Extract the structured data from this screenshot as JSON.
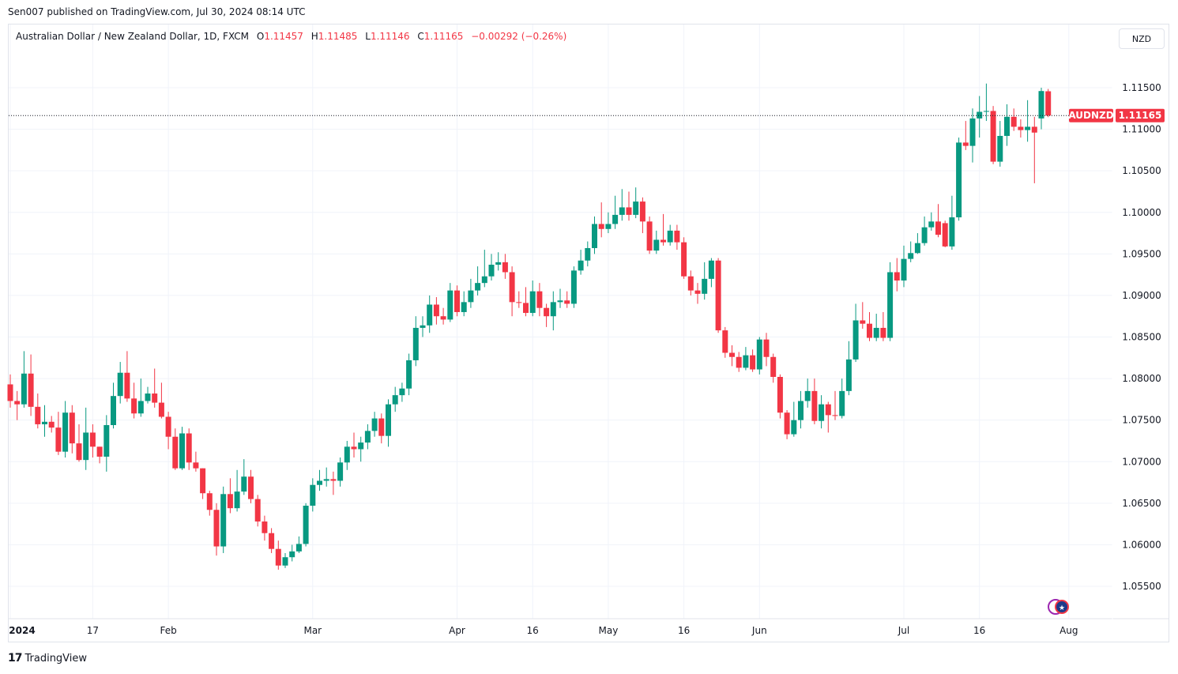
{
  "publish_line": "Sen007 published on TradingView.com, Jul 30, 2024 08:14 UTC",
  "legend": {
    "symbol": "Australian Dollar / New Zealand Dollar, 1D, FXCM",
    "o_label": "O",
    "o": "1.11457",
    "h_label": "H",
    "h": "1.11485",
    "l_label": "L",
    "l": "1.11146",
    "c_label": "C",
    "c": "1.11165",
    "change": "−0.00292 (−0.26%)"
  },
  "currency_button": "NZD",
  "last_price": {
    "ticker": "AUDNZD",
    "value": "1.11165",
    "price": 1.11165
  },
  "footer_logo": "TradingView",
  "colors": {
    "up": "#089981",
    "down": "#f23645",
    "grid": "#f0f3fa"
  },
  "chart_data": {
    "type": "candlestick",
    "title": "Australian Dollar / New Zealand Dollar, 1D, FXCM",
    "ylim": [
      1.0515,
      1.1185
    ],
    "y_ticks": [
      "1.05500",
      "1.06000",
      "1.06500",
      "1.07000",
      "1.07500",
      "1.08000",
      "1.08500",
      "1.09000",
      "1.09500",
      "1.10000",
      "1.10500",
      "1.11000",
      "1.11500"
    ],
    "x_ticks": [
      {
        "label": "2024",
        "index": 0
      },
      {
        "label": "17",
        "index": 12
      },
      {
        "label": "Feb",
        "index": 23
      },
      {
        "label": "Mar",
        "index": 44
      },
      {
        "label": "Apr",
        "index": 65
      },
      {
        "label": "16",
        "index": 76
      },
      {
        "label": "May",
        "index": 87
      },
      {
        "label": "16",
        "index": 98
      },
      {
        "label": "Jun",
        "index": 109
      },
      {
        "label": "Jul",
        "index": 130
      },
      {
        "label": "16",
        "index": 141
      },
      {
        "label": "Aug",
        "index": 154
      }
    ],
    "open_first": 1.0793,
    "open_overrides": {
      "136": 1.0987,
      "150": 1.1113,
      "151": 1.11457
    },
    "close": [
      1.0773,
      1.0769,
      1.0806,
      1.0766,
      1.0745,
      1.0748,
      1.0741,
      1.0712,
      1.0759,
      1.0722,
      1.0702,
      1.0735,
      1.0718,
      1.0706,
      1.0744,
      1.0779,
      1.0807,
      1.0776,
      1.0758,
      1.0773,
      1.0782,
      1.0771,
      1.0754,
      1.073,
      1.0692,
      1.0734,
      1.0699,
      1.0692,
      1.0662,
      1.0642,
      1.0598,
      1.0661,
      1.0644,
      1.0664,
      1.0682,
      1.0655,
      1.0628,
      1.0614,
      1.0595,
      1.0575,
      1.0585,
      1.0592,
      1.0601,
      1.0647,
      1.0672,
      1.0677,
      1.0679,
      1.0677,
      1.0699,
      1.0718,
      1.0715,
      1.0723,
      1.0737,
      1.0752,
      1.0731,
      1.0769,
      1.078,
      1.0788,
      1.0822,
      1.0861,
      1.0864,
      1.0889,
      1.0875,
      1.0871,
      1.0906,
      1.088,
      1.0892,
      1.0906,
      1.0915,
      1.0923,
      1.0937,
      1.094,
      1.0928,
      1.0892,
      1.0891,
      1.0879,
      1.0905,
      1.0885,
      1.0875,
      1.0892,
      1.0894,
      1.089,
      1.093,
      1.0942,
      1.0957,
      1.0986,
      1.098,
      1.0986,
      1.0997,
      1.1006,
      1.0997,
      1.1013,
      1.0989,
      1.0954,
      1.0967,
      1.0964,
      1.0978,
      1.0964,
      1.0923,
      1.0906,
      1.0902,
      1.092,
      1.0942,
      1.0858,
      1.0831,
      1.0826,
      1.0813,
      1.0828,
      1.0811,
      1.0847,
      1.0826,
      1.0802,
      1.0759,
      1.0733,
      1.075,
      1.0773,
      1.0785,
      1.0749,
      1.0769,
      1.0756,
      1.0755,
      1.0785,
      1.0823,
      1.087,
      1.0866,
      1.0849,
      1.0861,
      1.0849,
      1.0928,
      1.0918,
      1.0944,
      1.0951,
      1.0963,
      1.0982,
      1.0989,
      1.0973,
      1.0959,
      1.0994,
      1.1084,
      1.108,
      1.1113,
      1.1121,
      1.1122,
      1.1061,
      1.1092,
      1.1115,
      1.1103,
      1.1099,
      1.1103,
      1.1096,
      1.1146,
      1.11165
    ],
    "high": [
      1.0805,
      1.0785,
      1.0833,
      1.0829,
      1.0782,
      1.0768,
      1.0755,
      1.076,
      1.0773,
      1.0768,
      1.0745,
      1.0765,
      1.0745,
      1.0718,
      1.0756,
      1.0795,
      1.082,
      1.0833,
      1.0795,
      1.08,
      1.079,
      1.0812,
      1.0795,
      1.076,
      1.074,
      1.0742,
      1.074,
      1.0712,
      1.0692,
      1.0665,
      1.065,
      1.067,
      1.068,
      1.069,
      1.0703,
      1.069,
      1.066,
      1.0635,
      1.062,
      1.0605,
      1.059,
      1.06,
      1.061,
      1.065,
      1.068,
      1.069,
      1.0693,
      1.0688,
      1.0705,
      1.0725,
      1.0735,
      1.073,
      1.0745,
      1.076,
      1.0758,
      1.0775,
      1.079,
      1.0795,
      1.083,
      1.0875,
      1.0875,
      1.09,
      1.0898,
      1.0885,
      1.0915,
      1.0912,
      1.0905,
      1.092,
      1.0935,
      1.0955,
      1.095,
      1.0952,
      1.095,
      1.0935,
      1.0905,
      1.091,
      1.0918,
      1.0915,
      1.089,
      1.0905,
      1.0908,
      1.0905,
      1.0935,
      1.0955,
      1.0965,
      1.0995,
      1.1012,
      1.1,
      1.102,
      1.1028,
      1.1025,
      1.103,
      1.1018,
      1.0995,
      1.0978,
      1.0998,
      1.0985,
      1.0985,
      1.097,
      1.093,
      1.0915,
      1.094,
      1.0945,
      1.0945,
      1.0862,
      1.084,
      1.0832,
      1.0838,
      1.0835,
      1.085,
      1.0855,
      1.083,
      1.0805,
      1.0762,
      1.0772,
      1.0785,
      1.08,
      1.08,
      1.078,
      1.0772,
      1.0785,
      1.08,
      1.0845,
      1.089,
      1.0892,
      1.088,
      1.0878,
      1.088,
      1.094,
      1.0945,
      1.096,
      1.0965,
      1.0975,
      1.0995,
      1.1,
      1.101,
      1.099,
      1.102,
      1.109,
      1.111,
      1.1125,
      1.114,
      1.1155,
      1.1128,
      1.111,
      1.113,
      1.1125,
      1.1112,
      1.1135,
      1.1115,
      1.115,
      1.11485
    ],
    "low": [
      1.0765,
      1.075,
      1.0765,
      1.0755,
      1.074,
      1.073,
      1.0735,
      1.0708,
      1.0705,
      1.071,
      1.07,
      1.069,
      1.0705,
      1.0698,
      1.0688,
      1.074,
      1.077,
      1.0772,
      1.0752,
      1.0754,
      1.077,
      1.0765,
      1.0752,
      1.0715,
      1.069,
      1.069,
      1.069,
      1.0688,
      1.0655,
      1.0635,
      1.0587,
      1.059,
      1.0638,
      1.064,
      1.066,
      1.065,
      1.0622,
      1.0605,
      1.059,
      1.057,
      1.0572,
      1.058,
      1.059,
      1.0598,
      1.064,
      1.0665,
      1.067,
      1.066,
      1.067,
      1.069,
      1.0705,
      1.07,
      1.0715,
      1.073,
      1.0722,
      1.0718,
      1.076,
      1.0772,
      1.078,
      1.0815,
      1.085,
      1.0855,
      1.0865,
      1.0865,
      1.0868,
      1.0875,
      1.0875,
      1.0885,
      1.09,
      1.091,
      1.0918,
      1.093,
      1.092,
      1.0875,
      1.0885,
      1.0875,
      1.0875,
      1.0875,
      1.0862,
      1.0858,
      1.0885,
      1.0885,
      1.0885,
      1.0925,
      1.0935,
      1.095,
      1.097,
      1.0975,
      1.098,
      1.099,
      1.099,
      1.0993,
      1.0975,
      1.095,
      1.095,
      1.096,
      1.096,
      1.0955,
      1.092,
      1.09,
      1.089,
      1.0895,
      1.091,
      1.0855,
      1.0825,
      1.0815,
      1.0808,
      1.081,
      1.0808,
      1.0805,
      1.0815,
      1.0795,
      1.0752,
      1.0727,
      1.073,
      1.074,
      1.0765,
      1.0745,
      1.074,
      1.0735,
      1.075,
      1.0752,
      1.078,
      1.082,
      1.086,
      1.0845,
      1.0845,
      1.0845,
      1.0845,
      1.0905,
      1.091,
      1.094,
      1.095,
      1.096,
      1.0978,
      1.097,
      1.0958,
      1.0955,
      1.099,
      1.1075,
      1.106,
      1.109,
      1.111,
      1.1058,
      1.1055,
      1.108,
      1.1098,
      1.109,
      1.1085,
      1.1035,
      1.11,
      1.11146
    ]
  }
}
